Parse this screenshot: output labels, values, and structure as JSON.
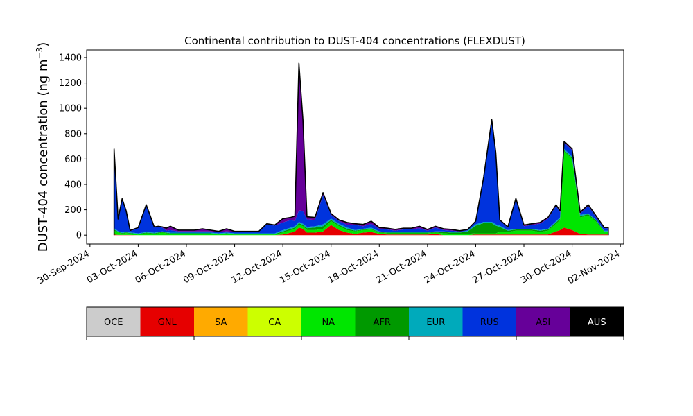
{
  "chart_data": {
    "type": "area",
    "title": "Continental contribution to DUST-404 concentrations (FLEXDUST)",
    "ylabel": "DUST-404 concentration (ng m",
    "ylabel_exponent": "−3",
    "ylabel_close": ")",
    "xlabel": "",
    "ylim": [
      -70,
      1460
    ],
    "xlim": [
      "2024-09-29T19:00",
      "2024-11-02T05:00"
    ],
    "yticks": [
      0,
      200,
      400,
      600,
      800,
      1000,
      1200,
      1400
    ],
    "xticks": [
      "2024-09-30",
      "2024-10-03",
      "2024-10-06",
      "2024-10-09",
      "2024-10-12",
      "2024-10-15",
      "2024-10-18",
      "2024-10-21",
      "2024-10-24",
      "2024-10-27",
      "2024-10-30",
      "2024-11-02"
    ],
    "xtick_labels": [
      "30-Sep-2024",
      "03-Oct-2024",
      "06-Oct-2024",
      "09-Oct-2024",
      "12-Oct-2024",
      "15-Oct-2024",
      "18-Oct-2024",
      "21-Oct-2024",
      "24-Oct-2024",
      "27-Oct-2024",
      "30-Oct-2024",
      "02-Nov-2024"
    ],
    "x": [
      "2024-10-01T12:00",
      "2024-10-01T18:00",
      "2024-10-02T00:00",
      "2024-10-02T06:00",
      "2024-10-02T12:00",
      "2024-10-03T00:00",
      "2024-10-03T12:00",
      "2024-10-04T00:00",
      "2024-10-04T06:00",
      "2024-10-04T12:00",
      "2024-10-04T18:00",
      "2024-10-05T00:00",
      "2024-10-05T12:00",
      "2024-10-06T00:00",
      "2024-10-06T12:00",
      "2024-10-07T00:00",
      "2024-10-07T12:00",
      "2024-10-08T00:00",
      "2024-10-08T12:00",
      "2024-10-09T00:00",
      "2024-10-09T12:00",
      "2024-10-10T00:00",
      "2024-10-10T12:00",
      "2024-10-11T00:00",
      "2024-10-11T12:00",
      "2024-10-12T00:00",
      "2024-10-12T12:00",
      "2024-10-12T18:00",
      "2024-10-13T00:00",
      "2024-10-13T06:00",
      "2024-10-13T12:00",
      "2024-10-14T00:00",
      "2024-10-14T12:00",
      "2024-10-15T00:00",
      "2024-10-15T12:00",
      "2024-10-16T00:00",
      "2024-10-16T12:00",
      "2024-10-17T00:00",
      "2024-10-17T12:00",
      "2024-10-18T00:00",
      "2024-10-18T12:00",
      "2024-10-19T00:00",
      "2024-10-19T12:00",
      "2024-10-20T00:00",
      "2024-10-20T12:00",
      "2024-10-21T00:00",
      "2024-10-21T12:00",
      "2024-10-22T00:00",
      "2024-10-22T12:00",
      "2024-10-23T00:00",
      "2024-10-23T12:00",
      "2024-10-24T00:00",
      "2024-10-24T12:00",
      "2024-10-25T00:00",
      "2024-10-25T06:00",
      "2024-10-25T12:00",
      "2024-10-26T00:00",
      "2024-10-26T12:00",
      "2024-10-27T00:00",
      "2024-10-27T12:00",
      "2024-10-28T00:00",
      "2024-10-28T12:00",
      "2024-10-29T00:00",
      "2024-10-29T06:00",
      "2024-10-29T12:00",
      "2024-10-30T00:00",
      "2024-10-30T12:00",
      "2024-10-31T00:00",
      "2024-10-31T12:00",
      "2024-11-01T00:00",
      "2024-11-01T06:00"
    ],
    "series": [
      {
        "name": "OCE",
        "color": "#cccccc",
        "values": [
          0,
          0,
          0,
          0,
          0,
          0,
          0,
          0,
          0,
          0,
          0,
          0,
          0,
          0,
          0,
          0,
          0,
          0,
          0,
          0,
          0,
          0,
          0,
          0,
          0,
          0,
          0,
          0,
          0,
          0,
          0,
          0,
          0,
          0,
          0,
          0,
          0,
          0,
          0,
          0,
          0,
          0,
          0,
          0,
          0,
          0,
          0,
          0,
          0,
          0,
          0,
          0,
          0,
          0,
          0,
          0,
          0,
          0,
          0,
          0,
          0,
          0,
          0,
          0,
          0,
          0,
          0,
          0,
          0,
          0,
          0
        ]
      },
      {
        "name": "GNL",
        "color": "#e60000",
        "values": [
          5,
          2,
          2,
          2,
          2,
          0,
          0,
          0,
          0,
          0,
          0,
          0,
          0,
          0,
          0,
          0,
          0,
          0,
          0,
          0,
          0,
          0,
          0,
          0,
          0,
          5,
          20,
          30,
          60,
          50,
          20,
          20,
          30,
          80,
          40,
          20,
          10,
          20,
          25,
          10,
          5,
          5,
          5,
          5,
          5,
          5,
          10,
          0,
          0,
          0,
          0,
          5,
          5,
          5,
          5,
          5,
          5,
          5,
          5,
          5,
          5,
          5,
          30,
          40,
          60,
          40,
          10,
          5,
          5,
          5,
          5
        ]
      },
      {
        "name": "SA",
        "color": "#ffaa00",
        "values": [
          0,
          0,
          0,
          0,
          0,
          0,
          0,
          0,
          0,
          0,
          0,
          0,
          0,
          0,
          0,
          0,
          0,
          0,
          0,
          0,
          0,
          0,
          0,
          0,
          0,
          0,
          0,
          0,
          0,
          0,
          0,
          0,
          0,
          0,
          0,
          0,
          0,
          0,
          0,
          0,
          0,
          0,
          0,
          0,
          0,
          0,
          0,
          0,
          0,
          0,
          0,
          0,
          0,
          0,
          0,
          0,
          0,
          0,
          0,
          0,
          0,
          0,
          0,
          0,
          0,
          0,
          0,
          0,
          0,
          0,
          0
        ]
      },
      {
        "name": "CA",
        "color": "#ccff00",
        "values": [
          0,
          0,
          0,
          0,
          0,
          0,
          0,
          0,
          0,
          0,
          0,
          0,
          0,
          0,
          0,
          0,
          0,
          0,
          0,
          0,
          0,
          0,
          0,
          0,
          0,
          0,
          0,
          0,
          0,
          0,
          0,
          0,
          0,
          0,
          0,
          0,
          0,
          0,
          0,
          0,
          0,
          0,
          0,
          0,
          0,
          0,
          0,
          0,
          0,
          0,
          0,
          0,
          0,
          0,
          0,
          0,
          0,
          0,
          0,
          0,
          0,
          0,
          0,
          0,
          0,
          0,
          0,
          0,
          0,
          0,
          0
        ]
      },
      {
        "name": "NA",
        "color": "#00e600",
        "values": [
          30,
          20,
          10,
          15,
          10,
          5,
          15,
          10,
          15,
          20,
          15,
          10,
          10,
          10,
          10,
          10,
          10,
          5,
          10,
          5,
          5,
          5,
          5,
          5,
          5,
          15,
          20,
          20,
          25,
          20,
          20,
          20,
          20,
          30,
          30,
          20,
          20,
          20,
          20,
          10,
          10,
          10,
          10,
          10,
          10,
          10,
          10,
          15,
          10,
          10,
          10,
          10,
          10,
          10,
          10,
          20,
          20,
          30,
          30,
          30,
          20,
          30,
          60,
          80,
          600,
          560,
          130,
          150,
          100,
          20,
          20
        ]
      },
      {
        "name": "AFR",
        "color": "#009900",
        "values": [
          10,
          5,
          5,
          5,
          5,
          5,
          5,
          5,
          5,
          5,
          5,
          5,
          5,
          5,
          5,
          5,
          5,
          5,
          5,
          5,
          5,
          5,
          5,
          5,
          5,
          10,
          10,
          10,
          10,
          10,
          15,
          20,
          20,
          10,
          10,
          10,
          5,
          5,
          5,
          5,
          5,
          5,
          5,
          5,
          5,
          5,
          5,
          10,
          10,
          10,
          20,
          60,
          80,
          80,
          60,
          40,
          10,
          10,
          10,
          10,
          10,
          10,
          10,
          10,
          10,
          10,
          10,
          10,
          10,
          5,
          5
        ]
      },
      {
        "name": "EUR",
        "color": "#00aabb",
        "values": [
          10,
          5,
          5,
          5,
          5,
          5,
          5,
          5,
          5,
          5,
          5,
          5,
          5,
          5,
          5,
          5,
          5,
          5,
          5,
          5,
          5,
          5,
          5,
          5,
          5,
          10,
          10,
          10,
          10,
          10,
          10,
          10,
          15,
          10,
          10,
          10,
          5,
          5,
          10,
          5,
          5,
          5,
          5,
          5,
          5,
          5,
          5,
          5,
          5,
          5,
          5,
          10,
          10,
          10,
          10,
          10,
          5,
          5,
          5,
          5,
          5,
          5,
          10,
          10,
          10,
          10,
          10,
          5,
          5,
          5,
          5
        ]
      },
      {
        "name": "RUS",
        "color": "#0033dd",
        "values": [
          620,
          90,
          260,
          160,
          10,
          40,
          210,
          40,
          40,
          30,
          10,
          20,
          10,
          10,
          10,
          10,
          10,
          10,
          10,
          10,
          10,
          10,
          10,
          70,
          60,
          60,
          60,
          40,
          90,
          100,
          60,
          50,
          230,
          30,
          20,
          20,
          40,
          20,
          30,
          20,
          20,
          10,
          20,
          20,
          30,
          10,
          30,
          10,
          10,
          5,
          5,
          20,
          350,
          800,
          560,
          40,
          20,
          230,
          20,
          30,
          50,
          80,
          120,
          40,
          50,
          50,
          10,
          60,
          20,
          20,
          20
        ]
      },
      {
        "name": "ASI",
        "color": "#660099",
        "values": [
          5,
          5,
          5,
          5,
          5,
          5,
          5,
          5,
          5,
          5,
          20,
          30,
          10,
          10,
          10,
          20,
          10,
          5,
          20,
          5,
          5,
          5,
          5,
          5,
          5,
          30,
          20,
          40,
          1160,
          720,
          20,
          20,
          20,
          10,
          10,
          20,
          10,
          15,
          20,
          10,
          10,
          10,
          10,
          10,
          15,
          10,
          10,
          10,
          10,
          5,
          5,
          5,
          5,
          5,
          5,
          5,
          5,
          10,
          10,
          10,
          10,
          10,
          10,
          10,
          10,
          10,
          10,
          10,
          10,
          5,
          5
        ]
      },
      {
        "name": "AUS",
        "color": "#000000",
        "values": [
          0,
          0,
          0,
          0,
          0,
          0,
          0,
          0,
          0,
          0,
          0,
          0,
          0,
          0,
          0,
          0,
          0,
          0,
          0,
          0,
          0,
          0,
          0,
          0,
          0,
          0,
          0,
          0,
          0,
          0,
          0,
          0,
          0,
          0,
          0,
          0,
          0,
          0,
          0,
          0,
          0,
          0,
          0,
          0,
          0,
          0,
          0,
          0,
          0,
          0,
          0,
          0,
          0,
          0,
          0,
          0,
          0,
          0,
          0,
          0,
          0,
          0,
          0,
          0,
          0,
          0,
          0,
          0,
          0,
          0,
          0
        ]
      }
    ],
    "legend_placement": "bottom (colorbar)",
    "grid": false
  }
}
